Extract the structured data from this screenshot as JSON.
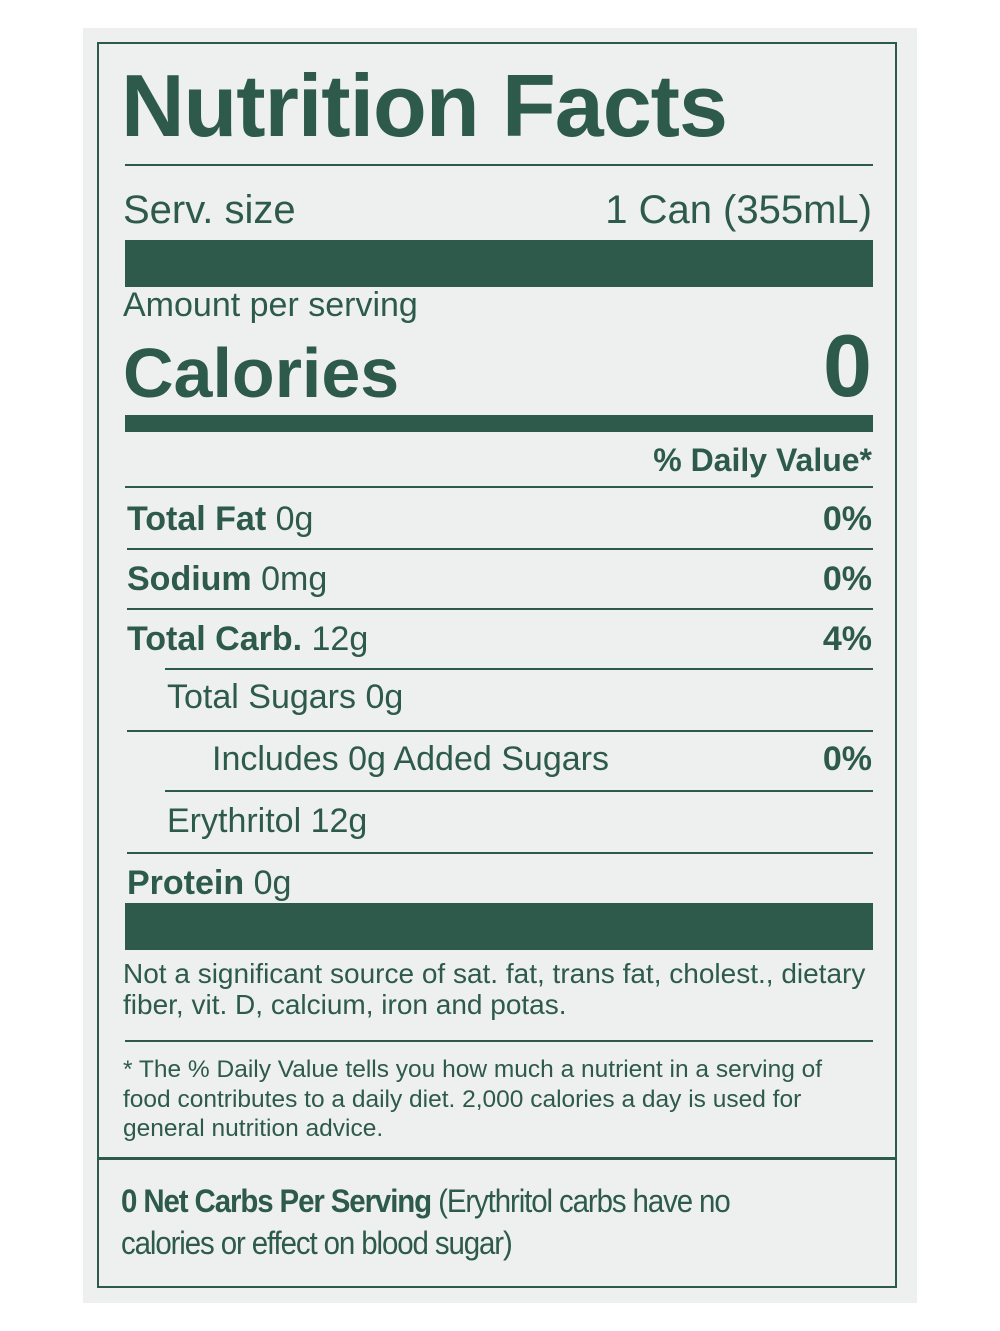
{
  "title": "Nutrition Facts",
  "serving": {
    "label": "Serv. size",
    "value": "1 Can (355mL)"
  },
  "amount_per_serving": "Amount per serving",
  "calories": {
    "label": "Calories",
    "value": 0
  },
  "daily_value_header": "% Daily Value*",
  "rows": [
    {
      "name": "Total Fat",
      "amount": "0g",
      "dv": "0%"
    },
    {
      "name": "Sodium",
      "amount": "0mg",
      "dv": "0%"
    },
    {
      "name": "Total Carb.",
      "amount": "12g",
      "dv": "4%"
    },
    {
      "text": "Total Sugars 0g"
    },
    {
      "text": "Includes 0g Added Sugars",
      "dv": "0%"
    },
    {
      "text": "Erythritol 12g"
    },
    {
      "name": "Protein",
      "amount": "0g"
    }
  ],
  "not_significant": "Not a significant source of sat. fat, trans fat, cholest., dietary fiber, vit. D, calcium, iron and potas.",
  "footnote": "* The % Daily Value tells you how much a nutrient in a serving of food contributes to a daily diet. 2,000 calories a day is used for general nutrition advice.",
  "net_carbs": {
    "bold": "0 Net Carbs Per Serving",
    "text": "(Erythritol carbs have no calories or effect on blood sugar)"
  }
}
